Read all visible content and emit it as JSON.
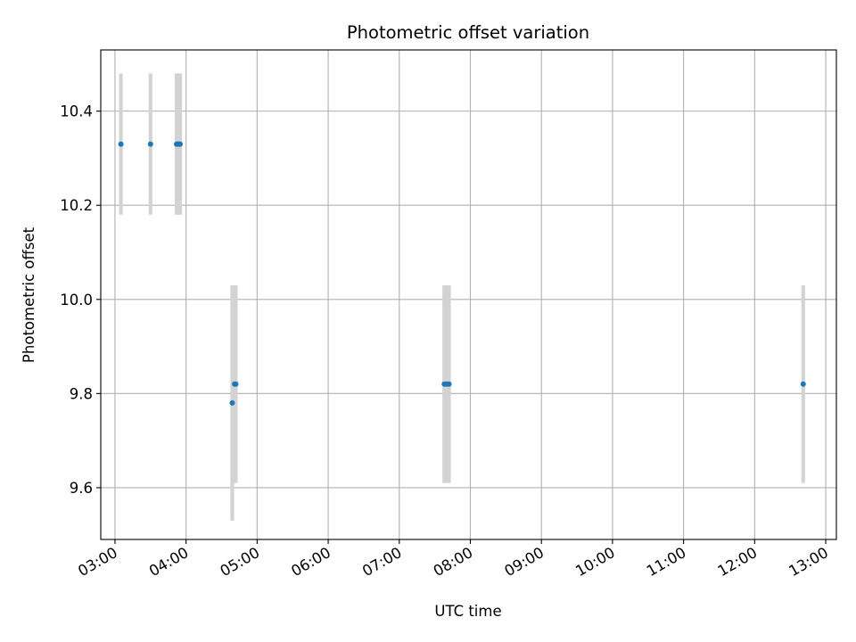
{
  "chart_data": {
    "type": "scatter",
    "title": "Photometric offset variation",
    "xlabel": "UTC time",
    "ylabel": "Photometric offset",
    "x_unit": "UTC hour",
    "xlim": [
      "02:48",
      "13:09"
    ],
    "ylim": [
      9.49,
      10.53
    ],
    "grid": true,
    "x_ticks": [
      "03:00",
      "04:00",
      "05:00",
      "06:00",
      "07:00",
      "08:00",
      "09:00",
      "10:00",
      "11:00",
      "12:00",
      "13:00"
    ],
    "y_ticks": [
      "9.6",
      "9.8",
      "10.0",
      "10.2",
      "10.4"
    ],
    "colors": {
      "points": "#1f77b4",
      "errorbars": "#d3d3d3",
      "grid": "#b0b0b0"
    },
    "series": [
      {
        "points": [
          {
            "x": "03:05",
            "y": 10.33,
            "yerr": 0.15
          },
          {
            "x": "03:30",
            "y": 10.33,
            "yerr": 0.15
          },
          {
            "x": "03:52",
            "y": 10.33,
            "yerr": 0.15
          },
          {
            "x": "03:53",
            "y": 10.33,
            "yerr": 0.15
          },
          {
            "x": "03:54",
            "y": 10.33,
            "yerr": 0.15
          },
          {
            "x": "03:55",
            "y": 10.33,
            "yerr": 0.15
          },
          {
            "x": "04:39",
            "y": 9.78,
            "yerr": 0.25
          },
          {
            "x": "04:41",
            "y": 9.82,
            "yerr": 0.21
          },
          {
            "x": "04:42",
            "y": 9.82,
            "yerr": 0.21
          },
          {
            "x": "07:38",
            "y": 9.82,
            "yerr": 0.21
          },
          {
            "x": "07:40",
            "y": 9.82,
            "yerr": 0.21
          },
          {
            "x": "07:42",
            "y": 9.82,
            "yerr": 0.21
          },
          {
            "x": "12:41",
            "y": 9.82,
            "yerr": 0.21
          }
        ]
      }
    ]
  }
}
